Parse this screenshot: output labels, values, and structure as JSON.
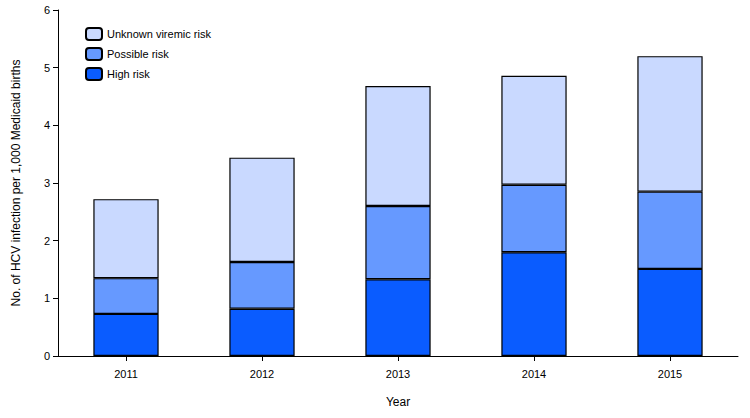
{
  "chart_data": {
    "type": "bar",
    "stacked": true,
    "x_label": "Year",
    "y_label": "No. of HCV infection per 1,000 Medicaid births",
    "categories": [
      "2011",
      "2012",
      "2013",
      "2014",
      "2015"
    ],
    "series": [
      {
        "name": "High risk",
        "color": "#0a5cff",
        "values": [
          0.73,
          0.82,
          1.33,
          1.8,
          1.51
        ]
      },
      {
        "name": "Possible risk",
        "color": "#6699ff",
        "values": [
          0.62,
          0.81,
          1.27,
          1.17,
          1.34
        ]
      },
      {
        "name": "Unknown viremic risk",
        "color": "#c9d9ff",
        "values": [
          1.37,
          1.81,
          2.08,
          1.89,
          2.35
        ]
      }
    ],
    "ylim": [
      0,
      6
    ],
    "yticks": [
      0,
      1,
      2,
      3,
      4,
      5,
      6
    ],
    "grid": false,
    "legend": "upper left"
  }
}
